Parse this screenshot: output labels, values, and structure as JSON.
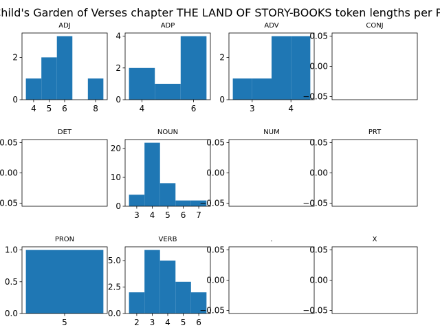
{
  "figure": {
    "suptitle": "A Child's Garden of Verses chapter THE LAND OF STORY-BOOKS token lengths per POS"
  },
  "chart_data": [
    {
      "type": "bar",
      "title": "ADJ",
      "bins": [
        [
          3.5,
          4.5,
          1
        ],
        [
          4.5,
          5.5,
          2
        ],
        [
          5.5,
          6.5,
          3
        ],
        [
          6.5,
          7.5,
          0
        ],
        [
          7.5,
          8.5,
          1
        ]
      ],
      "xlim": [
        3.25,
        8.75
      ],
      "ylim": [
        0,
        3.15
      ],
      "xticks": [
        4,
        5,
        6,
        8
      ],
      "yticks": [
        0,
        2
      ]
    },
    {
      "type": "bar",
      "title": "ADP",
      "bins": [
        [
          3.5,
          4.5,
          2
        ],
        [
          4.5,
          5.5,
          1
        ],
        [
          5.5,
          6.5,
          4
        ]
      ],
      "xlim": [
        3.35,
        6.65
      ],
      "ylim": [
        0,
        4.2
      ],
      "xticks": [
        4,
        6
      ],
      "yticks": [
        0,
        2,
        4
      ]
    },
    {
      "type": "bar",
      "title": "ADV",
      "bins": [
        [
          2.5,
          3.0,
          1
        ],
        [
          3.0,
          3.5,
          1
        ],
        [
          3.5,
          4.0,
          3
        ],
        [
          4.0,
          4.5,
          3
        ]
      ],
      "xlim": [
        2.4,
        4.6
      ],
      "ylim": [
        0,
        3.15
      ],
      "xticks": [
        3,
        4
      ],
      "yticks": [
        0,
        2
      ]
    },
    {
      "type": "bar",
      "title": "CONJ",
      "bins": [],
      "xlim": [
        0,
        1
      ],
      "ylim": [
        -0.055,
        0.055
      ],
      "xticks": [],
      "yticks": [
        0.05,
        0.0,
        -0.05
      ]
    },
    {
      "type": "bar",
      "title": "DET",
      "bins": [],
      "xlim": [
        0,
        1
      ],
      "ylim": [
        -0.055,
        0.055
      ],
      "xticks": [],
      "yticks": [
        0.05,
        0.0,
        -0.05
      ]
    },
    {
      "type": "bar",
      "title": "NOUN",
      "bins": [
        [
          2.5,
          3.5,
          4
        ],
        [
          3.5,
          4.5,
          22
        ],
        [
          4.5,
          5.5,
          8
        ],
        [
          5.5,
          6.5,
          2
        ],
        [
          6.5,
          7.5,
          2
        ]
      ],
      "xlim": [
        2.25,
        7.75
      ],
      "ylim": [
        0,
        23.1
      ],
      "xticks": [
        3,
        4,
        5,
        6,
        7
      ],
      "yticks": [
        0,
        10,
        20
      ]
    },
    {
      "type": "bar",
      "title": "NUM",
      "bins": [],
      "xlim": [
        0,
        1
      ],
      "ylim": [
        -0.055,
        0.055
      ],
      "xticks": [],
      "yticks": [
        0.05,
        0.0,
        -0.05
      ]
    },
    {
      "type": "bar",
      "title": "PRT",
      "bins": [],
      "xlim": [
        0,
        1
      ],
      "ylim": [
        -0.055,
        0.055
      ],
      "xticks": [],
      "yticks": [
        0.05,
        0.0,
        -0.05
      ]
    },
    {
      "type": "bar",
      "title": "PRON",
      "bins": [
        [
          4.5,
          5.5,
          1
        ]
      ],
      "xlim": [
        4.45,
        5.55
      ],
      "ylim": [
        0,
        1.05
      ],
      "xticks": [
        5
      ],
      "yticks": [
        0.0,
        0.5,
        1.0
      ]
    },
    {
      "type": "bar",
      "title": "VERB",
      "bins": [
        [
          1.5,
          2.5,
          2
        ],
        [
          2.5,
          3.5,
          6
        ],
        [
          3.5,
          4.5,
          5
        ],
        [
          4.5,
          5.5,
          3
        ],
        [
          5.5,
          6.5,
          2
        ]
      ],
      "xlim": [
        1.25,
        6.75
      ],
      "ylim": [
        0,
        6.3
      ],
      "xticks": [
        2,
        3,
        4,
        5,
        6
      ],
      "yticks": [
        0.0,
        2.5,
        5.0
      ]
    },
    {
      "type": "bar",
      "title": ".",
      "bins": [],
      "xlim": [
        0,
        1
      ],
      "ylim": [
        -0.055,
        0.055
      ],
      "xticks": [],
      "yticks": [
        0.05,
        0.0,
        -0.05
      ]
    },
    {
      "type": "bar",
      "title": "X",
      "bins": [],
      "xlim": [
        0,
        1
      ],
      "ylim": [
        -0.055,
        0.055
      ],
      "xticks": [],
      "yticks": [
        0.05,
        0.0,
        -0.05
      ]
    }
  ],
  "style": {
    "bar_color": "#1f77b4"
  }
}
